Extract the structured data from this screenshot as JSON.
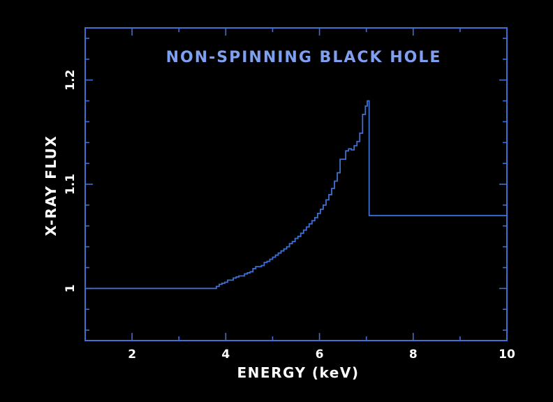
{
  "chart_data": {
    "type": "line",
    "step": true,
    "title": "NON-SPINNING BLACK HOLE",
    "xlabel": "ENERGY (keV)",
    "ylabel": "X-RAY FLUX",
    "xlim": [
      1,
      10
    ],
    "ylim": [
      0.95,
      1.25
    ],
    "x_ticks": [
      2,
      4,
      6,
      8,
      10
    ],
    "x_tick_labels": [
      "2",
      "4",
      "6",
      "8",
      "10"
    ],
    "x_minor_ticks": [
      1,
      3,
      5,
      7,
      9
    ],
    "y_ticks": [
      1.0,
      1.1,
      1.2
    ],
    "y_tick_labels": [
      "1",
      "1.1",
      "1.2"
    ],
    "y_minor_ticks": [
      0.96,
      0.98,
      1.02,
      1.04,
      1.06,
      1.08,
      1.12,
      1.14,
      1.16,
      1.18,
      1.22,
      1.24
    ],
    "grid": false,
    "colors": {
      "line": "#3f6fd1",
      "frame": "#3f6fd1",
      "title": "#7fa0f0",
      "labels": "#ffffff",
      "background": "#000000"
    },
    "series": [
      {
        "x": [
          1.0,
          3.8,
          3.86,
          3.92,
          3.98,
          4.04,
          4.1,
          4.16,
          4.22,
          4.28,
          4.34,
          4.4,
          4.46,
          4.52,
          4.58,
          4.64,
          4.7,
          4.76,
          4.82,
          4.88,
          4.94,
          5.0,
          5.06,
          5.12,
          5.18,
          5.24,
          5.3,
          5.36,
          5.42,
          5.48,
          5.54,
          5.6,
          5.66,
          5.72,
          5.78,
          5.84,
          5.9,
          5.96,
          6.02,
          6.08,
          6.14,
          6.2,
          6.26,
          6.32,
          6.38,
          6.44,
          6.5,
          6.56,
          6.62,
          6.68,
          6.74,
          6.8,
          6.86,
          6.92,
          6.98,
          7.02,
          7.06,
          10.0
        ],
        "y": [
          1.0,
          1.002,
          1.004,
          1.005,
          1.006,
          1.008,
          1.008,
          1.01,
          1.011,
          1.012,
          1.012,
          1.014,
          1.015,
          1.016,
          1.019,
          1.021,
          1.021,
          1.022,
          1.025,
          1.026,
          1.028,
          1.03,
          1.032,
          1.034,
          1.036,
          1.038,
          1.04,
          1.043,
          1.045,
          1.048,
          1.05,
          1.053,
          1.056,
          1.059,
          1.062,
          1.065,
          1.068,
          1.072,
          1.076,
          1.08,
          1.085,
          1.09,
          1.096,
          1.103,
          1.111,
          1.124,
          1.124,
          1.132,
          1.134,
          1.133,
          1.137,
          1.141,
          1.149,
          1.167,
          1.175,
          1.18,
          1.07,
          1.0
        ]
      }
    ]
  }
}
